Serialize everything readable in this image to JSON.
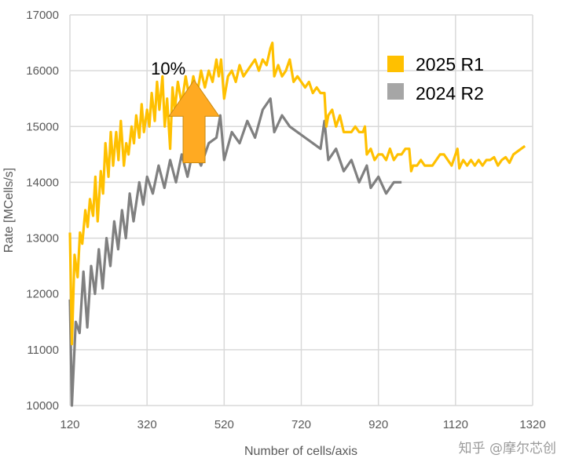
{
  "chart_data": {
    "type": "line",
    "title": "",
    "xlabel": "Number of cells/axis",
    "ylabel": "Rate [MCells/s]",
    "xlim": [
      120,
      1320
    ],
    "ylim": [
      10000,
      17000
    ],
    "xticks": [
      120,
      320,
      520,
      720,
      920,
      1120,
      1320
    ],
    "yticks": [
      10000,
      11000,
      12000,
      13000,
      14000,
      15000,
      16000,
      17000
    ],
    "grid": true,
    "legend_position": "top-right",
    "series": [
      {
        "name": "2025 R1",
        "color": "#FFC000",
        "x": [
          120,
          125,
          132,
          140,
          146,
          152,
          160,
          166,
          172,
          180,
          186,
          192,
          200,
          206,
          212,
          220,
          226,
          232,
          240,
          246,
          252,
          260,
          266,
          272,
          280,
          286,
          292,
          300,
          306,
          312,
          320,
          326,
          332,
          340,
          346,
          352,
          360,
          366,
          372,
          380,
          386,
          392,
          400,
          410,
          420,
          430,
          440,
          450,
          460,
          470,
          480,
          490,
          500,
          506,
          512,
          520,
          530,
          540,
          550,
          560,
          570,
          580,
          590,
          600,
          610,
          620,
          630,
          640,
          645,
          650,
          660,
          670,
          680,
          690,
          700,
          710,
          720,
          730,
          740,
          750,
          760,
          770,
          780,
          785,
          790,
          800,
          810,
          820,
          830,
          840,
          850,
          860,
          870,
          880,
          885,
          890,
          900,
          910,
          920,
          930,
          940,
          950,
          960,
          970,
          980,
          990,
          1000,
          1005,
          1010,
          1020,
          1030,
          1040,
          1050,
          1060,
          1070,
          1080,
          1090,
          1100,
          1110,
          1120,
          1125,
          1130,
          1140,
          1150,
          1160,
          1170,
          1180,
          1190,
          1200,
          1210,
          1220,
          1230,
          1240,
          1250,
          1260,
          1270,
          1280,
          1290,
          1300
        ],
        "y": [
          13100,
          11100,
          12700,
          12300,
          13100,
          12900,
          13500,
          13200,
          13700,
          13400,
          14100,
          13300,
          14200,
          13800,
          14700,
          14100,
          14900,
          14300,
          14900,
          14400,
          15100,
          14300,
          14700,
          14500,
          15000,
          14700,
          15200,
          14800,
          15400,
          14900,
          15300,
          15000,
          15600,
          15100,
          15800,
          15300,
          15900,
          15000,
          15500,
          14600,
          15700,
          15300,
          15800,
          15400,
          15900,
          15500,
          15900,
          15600,
          16000,
          15700,
          16000,
          15800,
          16200,
          15900,
          16200,
          15500,
          15900,
          16000,
          15800,
          16100,
          15900,
          16000,
          16100,
          16200,
          16000,
          16200,
          16100,
          16400,
          16500,
          15900,
          16100,
          15900,
          16000,
          16200,
          15800,
          15900,
          15800,
          15700,
          15800,
          15600,
          15700,
          15600,
          15600,
          15000,
          15200,
          15300,
          15000,
          15200,
          14900,
          14900,
          14900,
          15000,
          14900,
          14900,
          15000,
          14500,
          14600,
          14400,
          14500,
          14500,
          14400,
          14600,
          14400,
          14500,
          14500,
          14600,
          14600,
          14200,
          14300,
          14300,
          14400,
          14300,
          14300,
          14300,
          14400,
          14500,
          14500,
          14400,
          14300,
          14500,
          14600,
          14250,
          14400,
          14300,
          14400,
          14300,
          14400,
          14300,
          14400,
          14400,
          14450,
          14300,
          14400,
          14450,
          14350,
          14500,
          14550,
          14600,
          14650
        ]
      },
      {
        "name": "2024 R2",
        "color": "#808080",
        "x": [
          120,
          125,
          135,
          145,
          155,
          165,
          175,
          185,
          195,
          205,
          215,
          225,
          235,
          245,
          255,
          265,
          275,
          285,
          300,
          310,
          320,
          335,
          350,
          365,
          380,
          395,
          410,
          425,
          440,
          460,
          480,
          500,
          510,
          520,
          540,
          560,
          580,
          600,
          620,
          640,
          650,
          670,
          690,
          710,
          730,
          750,
          770,
          780,
          790,
          810,
          830,
          850,
          870,
          890,
          900,
          920,
          940,
          960,
          980
        ],
        "y": [
          11900,
          10000,
          11500,
          11300,
          12400,
          11400,
          12500,
          12000,
          12800,
          12100,
          13000,
          12500,
          13300,
          12800,
          13500,
          13000,
          13800,
          13300,
          14000,
          13600,
          14100,
          13800,
          14300,
          13900,
          14400,
          14000,
          14500,
          14100,
          14600,
          14300,
          14700,
          14800,
          15200,
          14400,
          14900,
          14700,
          15100,
          14800,
          15300,
          15500,
          14900,
          15200,
          15000,
          14900,
          14800,
          14700,
          14600,
          15100,
          14400,
          14600,
          14200,
          14400,
          14000,
          14300,
          13900,
          14100,
          13800,
          14000,
          14000
        ]
      }
    ],
    "annotations": [
      {
        "type": "text",
        "text": "10%",
        "x": 375,
        "y": 15930
      },
      {
        "type": "up-arrow",
        "color": "#FFAA22",
        "x": 442,
        "y_from": 14350,
        "y_to": 15830
      }
    ]
  },
  "watermark": "知乎 @摩尔芯创"
}
